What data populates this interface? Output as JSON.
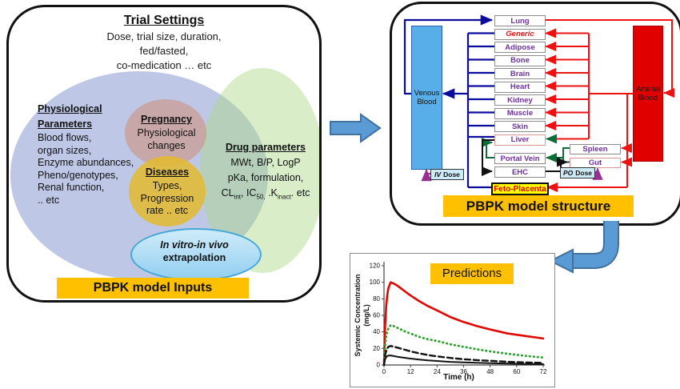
{
  "left_panel": {
    "title": "Trial Settings",
    "subtitle": [
      "Dose, trial size, duration,",
      "fed/fasted,",
      "co-medication  … etc"
    ],
    "physiological": {
      "heading_line1": "Physiological",
      "heading_line2": "Parameters",
      "items": [
        "Blood flows,",
        "organ sizes,",
        "Enzyme abundances,",
        "Pheno/genotypes,",
        "Renal function,",
        ".. etc"
      ]
    },
    "pregnancy": {
      "heading": "Pregnancy",
      "body": [
        "Physiological",
        "changes"
      ]
    },
    "diseases": {
      "heading": "Diseases",
      "body": [
        "Types,",
        "Progression",
        "rate .. etc"
      ]
    },
    "drug": {
      "heading": "Drug parameters",
      "line1": "MWt, B/P, LogP",
      "line2": "pKa, formulation,",
      "line3": {
        "t1": "CL",
        "s1": "int",
        "t2": ", IC",
        "s2": "50,",
        "t3": " .K",
        "s3": "inact",
        "t4": ". etc"
      }
    },
    "ivive": {
      "line1": "In vitro-in vivo",
      "line2": "extrapolation"
    },
    "banner": "PBPK model Inputs"
  },
  "right_panel": {
    "venous_line1": "Venous",
    "venous_line2": "Blood",
    "arterial_line1": "Arterial",
    "arterial_line2": "Blood",
    "organs": [
      "Lung",
      "Generic",
      "Adipose",
      "Bone",
      "Brain",
      "Heart",
      "Kidney",
      "Muscle",
      "Skin",
      "Liver",
      "Portal Vein",
      "EHC"
    ],
    "spleen": "Spleen",
    "gut": "Gut",
    "feto": "Feto-Placenta",
    "iv_dose": {
      "em": "IV",
      "rest": "Dose"
    },
    "po_dose": {
      "em": "PO",
      "rest": "Dose"
    },
    "banner": "PBPK model structure"
  },
  "chart_data": {
    "type": "line",
    "title": "Predictions",
    "xlabel": "Time (h)",
    "ylabel": "Systemic Concentration (mg/L)",
    "ylabel_lines": [
      "Systemic Concentration",
      "(mg/L)"
    ],
    "xlim": [
      0,
      72
    ],
    "ylim": [
      0,
      120
    ],
    "xticks": [
      0,
      12,
      24,
      36,
      48,
      60,
      72
    ],
    "yticks": [
      0,
      20,
      40,
      60,
      80,
      100,
      120
    ],
    "grid": false,
    "legend": "none",
    "x": [
      0,
      0.5,
      1,
      1.5,
      2,
      3,
      4,
      6,
      8,
      10,
      12,
      16,
      20,
      24,
      30,
      36,
      42,
      48,
      56,
      64,
      72
    ],
    "series": [
      {
        "name": "series-1-red-solid",
        "style": "solid",
        "color": "#E10600",
        "width": 2.6,
        "values": [
          0,
          48,
          72,
          85,
          93,
          100,
          99,
          96,
          92,
          88,
          84,
          77,
          71,
          66,
          58,
          52,
          47,
          43,
          38,
          35,
          32
        ]
      },
      {
        "name": "series-2-green-dotted",
        "style": "dotted",
        "color": "#2CA02C",
        "width": 2.8,
        "values": [
          0,
          24,
          35,
          41,
          44,
          48,
          47.5,
          45,
          42.5,
          40,
          38,
          34,
          31,
          29,
          25,
          22,
          19,
          16.5,
          13.5,
          11,
          9
        ]
      },
      {
        "name": "series-3-black-dashed",
        "style": "dashed",
        "color": "#111111",
        "width": 2.4,
        "values": [
          0,
          12,
          17,
          20,
          22,
          23,
          22.5,
          21,
          19.5,
          18,
          16.5,
          14,
          12,
          10.5,
          8.5,
          7,
          5.9,
          5,
          3.9,
          3.1,
          2.5
        ]
      },
      {
        "name": "series-4-black-solid",
        "style": "solid",
        "color": "#111111",
        "width": 2,
        "values": [
          0,
          7,
          9.5,
          10.8,
          11.3,
          11.5,
          11,
          10,
          9.2,
          8.4,
          7.7,
          6.5,
          5.5,
          4.8,
          3.8,
          3.1,
          2.6,
          2.2,
          1.7,
          1.3,
          1.1
        ]
      }
    ]
  },
  "colors": {
    "banner_bg": "#FFC000",
    "venous_fill": "#58AEE8",
    "arterial_fill": "#E00000",
    "organ_text": "#7030A0",
    "generic_text": "#EE1111",
    "venous_line": "#0B0B9E",
    "arterial_line": "#EE1111",
    "portal_line": "#0E6E3A",
    "bile_line": "#111111",
    "dose_arrow": "#963192",
    "big_arrow": "#5B9BD5",
    "big_arrow_border": "#41719C"
  }
}
